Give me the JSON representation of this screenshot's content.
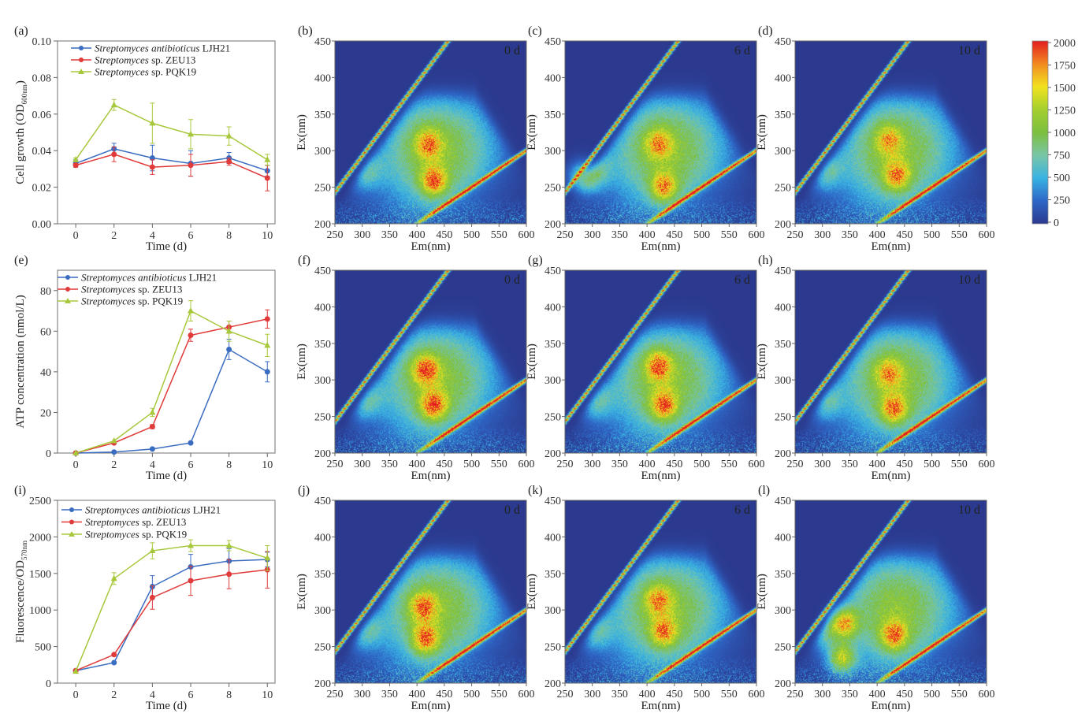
{
  "colorbar": {
    "ticks": [
      "0",
      "250",
      "500",
      "750",
      "1000",
      "1250",
      "1500",
      "1750",
      "2000"
    ],
    "clim": [
      0,
      2000
    ],
    "colors": [
      "#2b3a8f",
      "#2e67c7",
      "#39b3e3",
      "#79c6a6",
      "#7cbf3f",
      "#a4cf2f",
      "#f2e21e",
      "#f28a22",
      "#e31d1f"
    ]
  },
  "chart_data": [
    {
      "type": "line",
      "panel_label": "(a)",
      "xlabel": "Time (d)",
      "ylabel": {
        "main": "Cell growth (OD",
        "sub": "600nm",
        "end": ")"
      },
      "ylim": [
        0,
        0.1
      ],
      "yticks": [
        "0.00",
        "0.02",
        "0.04",
        "0.06",
        "0.08",
        "0.10"
      ],
      "x": [
        0,
        2,
        4,
        6,
        8,
        10
      ],
      "xticks": [
        "0",
        "2",
        "4",
        "6",
        "8",
        "10"
      ],
      "series": [
        {
          "name_italic": "Streptomyces antibioticus",
          "name_rest": " LJH21",
          "color": "#3a6cc0",
          "marker": "circle",
          "values": [
            0.033,
            0.041,
            0.036,
            0.033,
            0.036,
            0.029
          ],
          "errors": [
            0.002,
            0.003,
            0.007,
            0.007,
            0.003,
            0.003
          ]
        },
        {
          "name_italic": "Streptomyces",
          "name_rest": " sp. ZEU13",
          "color": "#e03a3a",
          "marker": "circle",
          "values": [
            0.032,
            0.038,
            0.031,
            0.032,
            0.034,
            0.025
          ],
          "errors": [
            0.001,
            0.004,
            0.004,
            0.006,
            0.002,
            0.007
          ]
        },
        {
          "name_italic": "Streptomyces",
          "name_rest": " sp. PQK19",
          "color": "#a8c83c",
          "marker": "triangle",
          "values": [
            0.035,
            0.065,
            0.055,
            0.049,
            0.048,
            0.035
          ],
          "errors": [
            0.001,
            0.003,
            0.011,
            0.008,
            0.005,
            0.003
          ]
        }
      ]
    },
    {
      "type": "heatmap",
      "panel_label": "(b)",
      "day_label": "0 d",
      "xlabel": "Em(nm)",
      "ylabel": "Ex(nm)",
      "xlim": [
        250,
        600
      ],
      "ylim": [
        200,
        450
      ],
      "xticks": [
        "250",
        "300",
        "350",
        "400",
        "450",
        "500",
        "550",
        "600"
      ],
      "yticks": [
        "200",
        "250",
        "300",
        "350",
        "400",
        "450"
      ],
      "clim": [
        0,
        2000
      ],
      "peaks": [
        {
          "em": 430,
          "ex": 258,
          "intensity": 2000
        },
        {
          "em": 420,
          "ex": 310,
          "intensity": 1450
        }
      ]
    },
    {
      "type": "heatmap",
      "panel_label": "(c)",
      "day_label": "6 d",
      "xlabel": "Em(nm)",
      "ylabel": "Ex(nm)",
      "xlim": [
        250,
        600
      ],
      "ylim": [
        200,
        450
      ],
      "xticks": [
        "250",
        "300",
        "350",
        "400",
        "450",
        "500",
        "550",
        "600"
      ],
      "yticks": [
        "200",
        "250",
        "300",
        "350",
        "400",
        "450"
      ],
      "clim": [
        0,
        2000
      ],
      "peaks": [
        {
          "em": 430,
          "ex": 250,
          "intensity": 1900
        },
        {
          "em": 420,
          "ex": 310,
          "intensity": 1350
        },
        {
          "em": 280,
          "ex": 265,
          "intensity": 1300
        }
      ]
    },
    {
      "type": "heatmap",
      "panel_label": "(d)",
      "day_label": "10 d",
      "xlabel": "Em(nm)",
      "ylabel": "Ex(nm)",
      "xlim": [
        250,
        600
      ],
      "ylim": [
        200,
        450
      ],
      "xticks": [
        "250",
        "300",
        "350",
        "400",
        "450",
        "500",
        "550",
        "600"
      ],
      "yticks": [
        "200",
        "250",
        "300",
        "350",
        "400",
        "450"
      ],
      "clim": [
        0,
        2000
      ],
      "peaks": [
        {
          "em": 435,
          "ex": 265,
          "intensity": 1700
        },
        {
          "em": 420,
          "ex": 315,
          "intensity": 1250
        }
      ]
    },
    {
      "type": "line",
      "panel_label": "(e)",
      "xlabel": "Time (d)",
      "ylabel": {
        "main": "ATP concentration (nmol/L)",
        "sub": "",
        "end": ""
      },
      "ylim": [
        0,
        90
      ],
      "yticks": [
        "0",
        "20",
        "40",
        "60",
        "80"
      ],
      "x": [
        0,
        2,
        4,
        6,
        8,
        10
      ],
      "xticks": [
        "0",
        "2",
        "4",
        "6",
        "8",
        "10"
      ],
      "series": [
        {
          "name_italic": "Streptomyces antibioticus",
          "name_rest": " LJH21",
          "color": "#3a6cc0",
          "marker": "circle",
          "values": [
            0,
            0.5,
            2,
            5,
            51,
            40
          ],
          "errors": [
            0,
            0,
            0,
            0,
            5,
            5
          ]
        },
        {
          "name_italic": "Streptomyces",
          "name_rest": " sp. ZEU13",
          "color": "#e03a3a",
          "marker": "circle",
          "values": [
            0,
            5,
            13,
            58,
            62,
            66
          ],
          "errors": [
            0,
            0,
            1,
            3,
            3,
            4.5
          ]
        },
        {
          "name_italic": "Streptomyces",
          "name_rest": " sp. PQK19",
          "color": "#a8c83c",
          "marker": "triangle",
          "values": [
            0,
            6,
            20,
            70,
            60,
            53
          ],
          "errors": [
            0,
            0,
            2,
            5,
            5,
            5.5
          ]
        }
      ]
    },
    {
      "type": "heatmap",
      "panel_label": "(f)",
      "day_label": "0 d",
      "xlabel": "Em(nm)",
      "ylabel": "Ex(nm)",
      "xlim": [
        250,
        600
      ],
      "ylim": [
        200,
        450
      ],
      "xticks": [
        "250",
        "300",
        "350",
        "400",
        "450",
        "500",
        "550",
        "600"
      ],
      "yticks": [
        "200",
        "250",
        "300",
        "350",
        "400",
        "450"
      ],
      "clim": [
        0,
        2000
      ],
      "peaks": [
        {
          "em": 430,
          "ex": 265,
          "intensity": 2000
        },
        {
          "em": 415,
          "ex": 315,
          "intensity": 1800
        }
      ]
    },
    {
      "type": "heatmap",
      "panel_label": "(g)",
      "day_label": "6 d",
      "xlabel": "Em(nm)",
      "ylabel": "Ex(nm)",
      "xlim": [
        250,
        600
      ],
      "ylim": [
        200,
        450
      ],
      "xticks": [
        "250",
        "300",
        "350",
        "400",
        "450",
        "500",
        "550",
        "600"
      ],
      "yticks": [
        "200",
        "250",
        "300",
        "350",
        "400",
        "450"
      ],
      "clim": [
        0,
        2000
      ],
      "peaks": [
        {
          "em": 430,
          "ex": 265,
          "intensity": 1900
        },
        {
          "em": 420,
          "ex": 320,
          "intensity": 1700
        }
      ]
    },
    {
      "type": "heatmap",
      "panel_label": "(h)",
      "day_label": "10 d",
      "xlabel": "Em(nm)",
      "ylabel": "Ex(nm)",
      "xlim": [
        250,
        600
      ],
      "ylim": [
        200,
        450
      ],
      "xticks": [
        "250",
        "300",
        "350",
        "400",
        "450",
        "500",
        "550",
        "600"
      ],
      "yticks": [
        "200",
        "250",
        "300",
        "350",
        "400",
        "450"
      ],
      "clim": [
        0,
        2000
      ],
      "peaks": [
        {
          "em": 430,
          "ex": 260,
          "intensity": 1850
        },
        {
          "em": 420,
          "ex": 310,
          "intensity": 1300
        }
      ]
    },
    {
      "type": "line",
      "panel_label": "(i)",
      "xlabel": "Time (d)",
      "ylabel": {
        "main": "Fluorescence/OD",
        "sub": "570nm",
        "end": ""
      },
      "ylim": [
        0,
        2500
      ],
      "yticks": [
        "0",
        "500",
        "1000",
        "1500",
        "2000",
        "2500"
      ],
      "x": [
        0,
        2,
        4,
        6,
        8,
        10
      ],
      "xticks": [
        "0",
        "2",
        "4",
        "6",
        "8",
        "10"
      ],
      "series": [
        {
          "name_italic": "Streptomyces antibioticus",
          "name_rest": " LJH21",
          "color": "#3a6cc0",
          "marker": "circle",
          "values": [
            170,
            280,
            1320,
            1590,
            1670,
            1690
          ],
          "errors": [
            0,
            0,
            150,
            170,
            170,
            100
          ]
        },
        {
          "name_italic": "Streptomyces",
          "name_rest": " sp. ZEU13",
          "color": "#e03a3a",
          "marker": "circle",
          "values": [
            170,
            390,
            1170,
            1400,
            1490,
            1550
          ],
          "errors": [
            0,
            0,
            160,
            200,
            200,
            250
          ]
        },
        {
          "name_italic": "Streptomyces",
          "name_rest": " sp. PQK19",
          "color": "#a8c83c",
          "marker": "triangle",
          "values": [
            160,
            1430,
            1810,
            1880,
            1880,
            1710
          ],
          "errors": [
            0,
            80,
            110,
            80,
            70,
            170
          ]
        }
      ]
    },
    {
      "type": "heatmap",
      "panel_label": "(j)",
      "day_label": "0 d",
      "xlabel": "Em(nm)",
      "ylabel": "Ex(nm)",
      "xlim": [
        250,
        600
      ],
      "ylim": [
        200,
        450
      ],
      "xticks": [
        "250",
        "300",
        "350",
        "400",
        "450",
        "500",
        "550",
        "600"
      ],
      "yticks": [
        "200",
        "250",
        "300",
        "350",
        "400",
        "450"
      ],
      "clim": [
        0,
        2000
      ],
      "peaks": [
        {
          "em": 415,
          "ex": 260,
          "intensity": 2000
        },
        {
          "em": 410,
          "ex": 305,
          "intensity": 1600
        }
      ]
    },
    {
      "type": "heatmap",
      "panel_label": "(k)",
      "day_label": "6 d",
      "xlabel": "Em(nm)",
      "ylabel": "Ex(nm)",
      "xlim": [
        250,
        600
      ],
      "ylim": [
        200,
        450
      ],
      "xticks": [
        "250",
        "300",
        "350",
        "400",
        "450",
        "500",
        "550",
        "600"
      ],
      "yticks": [
        "200",
        "250",
        "300",
        "350",
        "400",
        "450"
      ],
      "clim": [
        0,
        2000
      ],
      "peaks": [
        {
          "em": 430,
          "ex": 270,
          "intensity": 1600
        },
        {
          "em": 420,
          "ex": 315,
          "intensity": 1400
        }
      ]
    },
    {
      "type": "heatmap",
      "panel_label": "(l)",
      "day_label": "10 d",
      "xlabel": "Em(nm)",
      "ylabel": "Ex(nm)",
      "xlim": [
        250,
        600
      ],
      "ylim": [
        200,
        450
      ],
      "xticks": [
        "250",
        "300",
        "350",
        "400",
        "450",
        "500",
        "550",
        "600"
      ],
      "yticks": [
        "200",
        "250",
        "300",
        "350",
        "400",
        "450"
      ],
      "clim": [
        0,
        2000
      ],
      "peaks": [
        {
          "em": 430,
          "ex": 265,
          "intensity": 1800
        },
        {
          "em": 340,
          "ex": 282,
          "intensity": 2000
        },
        {
          "em": 335,
          "ex": 235,
          "intensity": 1900
        }
      ]
    }
  ]
}
